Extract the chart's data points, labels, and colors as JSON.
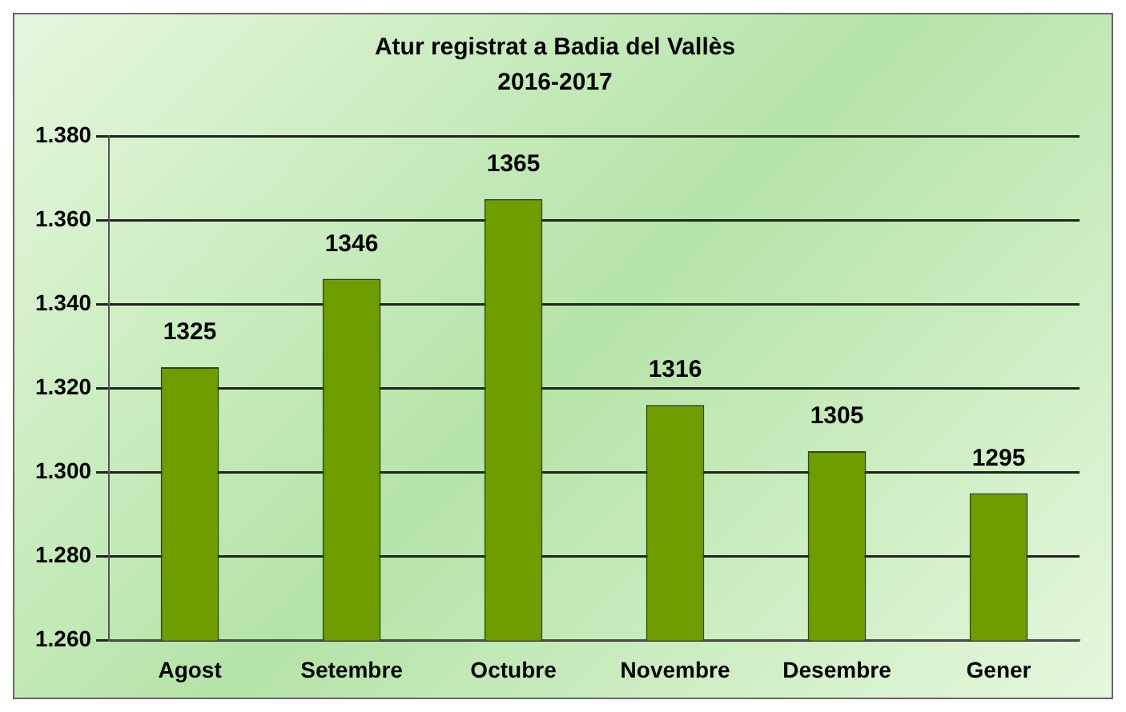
{
  "chart_data": {
    "type": "bar",
    "title": "Atur registrat a Badia del Vallès",
    "subtitle": "2016-2017",
    "categories": [
      "Agost",
      "Setembre",
      "Octubre",
      "Novembre",
      "Desembre",
      "Gener"
    ],
    "values": [
      1325,
      1346,
      1365,
      1316,
      1305,
      1295
    ],
    "color": "#6f9c00",
    "ylim": [
      1260,
      1380
    ],
    "yticks": [
      {
        "value": 1260,
        "label": "1.260"
      },
      {
        "value": 1280,
        "label": "1.280"
      },
      {
        "value": 1300,
        "label": "1.300"
      },
      {
        "value": 1320,
        "label": "1.320"
      },
      {
        "value": 1340,
        "label": "1.340"
      },
      {
        "value": 1360,
        "label": "1.360"
      },
      {
        "value": 1380,
        "label": "1.380"
      }
    ],
    "grid": "y",
    "legend": false,
    "data_labels": true
  }
}
